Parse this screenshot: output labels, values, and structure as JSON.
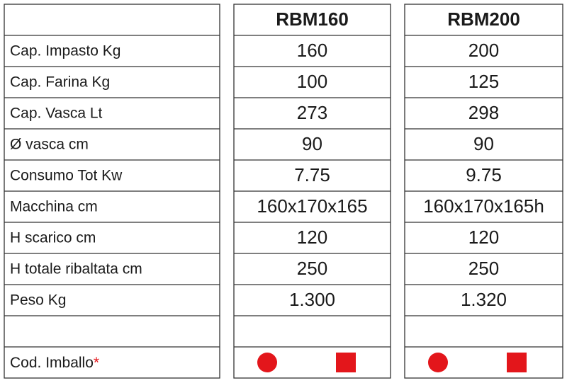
{
  "table": {
    "columns": [
      "RBM160",
      "RBM200"
    ],
    "rows": [
      {
        "label": "Cap. Impasto Kg",
        "values": [
          "160",
          "200"
        ]
      },
      {
        "label": "Cap. Farina Kg",
        "values": [
          "100",
          "125"
        ]
      },
      {
        "label": "Cap. Vasca Lt",
        "values": [
          "273",
          "298"
        ]
      },
      {
        "label": "Ø vasca cm",
        "values": [
          "90",
          "90"
        ]
      },
      {
        "label": "Consumo Tot Kw",
        "values": [
          "7.75",
          "9.75"
        ]
      },
      {
        "label": "Macchina cm",
        "values": [
          "160x170x165",
          "160x170x165h"
        ]
      },
      {
        "label": "H scarico cm",
        "values": [
          "120",
          "120"
        ]
      },
      {
        "label": "H totale ribaltata cm",
        "values": [
          "250",
          "250"
        ]
      },
      {
        "label": "Peso Kg",
        "values": [
          "1.300",
          "1.320"
        ]
      }
    ],
    "packing": {
      "label": "Cod. Imballo",
      "marker": "*"
    }
  }
}
